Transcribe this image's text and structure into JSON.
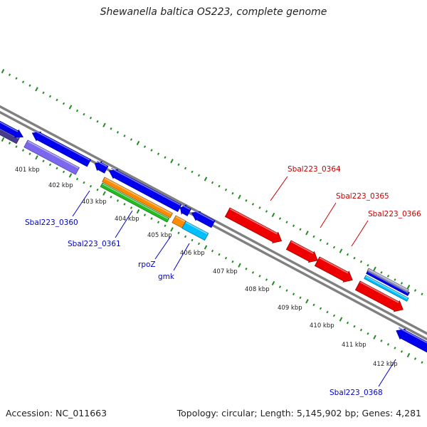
{
  "title": "Shewanella baltica OS223, complete genome",
  "footer": {
    "accession": "Accession: NC_011663",
    "summary": "Topology: circular; Length: 5,145,902 bp; Genes: 4,281"
  },
  "colors": {
    "backbone": "#808080",
    "tick": "#228B22",
    "blue_gene": "#0000EE",
    "red_gene": "#EE0000",
    "orange_gene": "#FF8C00",
    "green_gene": "#22BB22",
    "cyan_gene": "#00BFFF",
    "purple_gene": "#7B68EE",
    "dark_purple_gene": "#483D8B",
    "blue_label": "#0000CC",
    "red_label": "#CC0000"
  },
  "scale_labels": [
    "401 kbp",
    "402 kbp",
    "403 kbp",
    "404 kbp",
    "405 kbp",
    "406 kbp",
    "407 kbp",
    "408 kbp",
    "409 kbp",
    "410 kbp",
    "411 kbp",
    "412 kbp"
  ],
  "gene_labels": [
    {
      "text": "Sbal223_0360",
      "color": "blue"
    },
    {
      "text": "Sbal223_0361",
      "color": "blue"
    },
    {
      "text": "rpoZ",
      "color": "blue"
    },
    {
      "text": "gmk",
      "color": "blue"
    },
    {
      "text": "Sbal223_0364",
      "color": "red"
    },
    {
      "text": "Sbal223_0365",
      "color": "red"
    },
    {
      "text": "Sbal223_0366",
      "color": "red"
    },
    {
      "text": "Sbal223_0368",
      "color": "blue"
    }
  ]
}
